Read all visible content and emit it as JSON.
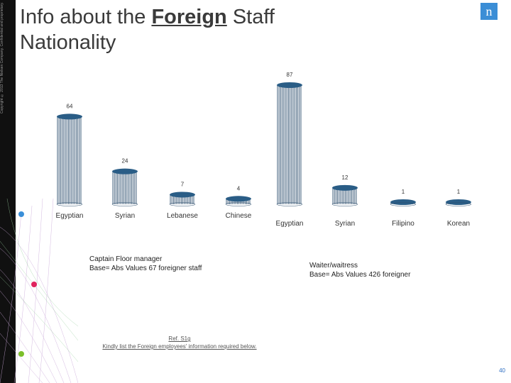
{
  "slide": {
    "title_pre": "Info about the ",
    "title_emph": "Foreign",
    "title_post": " Staff",
    "title_line2": "Nationality",
    "copyright": "Copyright © 2013 The Nielsen Company. Confidential and proprietary.",
    "logo_glyph": "n",
    "captain_caption_line1": "Captain Floor manager",
    "captain_caption_line2": "Base= Abs Values 67 foreigner staff",
    "waiter_caption_line1": "Waiter/waitress",
    "waiter_caption_line2": "Base= Abs Values 426 foreigner",
    "ref_line1": "Ref. S1g",
    "ref_line2": "Kindly list the Foreign employees' information required below.",
    "page_number": "40",
    "colors": {
      "bar": "#2e4f6e",
      "bar_top": "#2a5d86",
      "accent_blue": "#2e6fc2",
      "web_dots": [
        "#3a8fd8",
        "#e0245e",
        "#7bbf2a"
      ]
    }
  },
  "chart_data": [
    {
      "type": "bar",
      "title": "Captain Floor manager",
      "categories": [
        "Egyptian",
        "Syrian",
        "Lebanese",
        "Chinese"
      ],
      "values": [
        64,
        24,
        7,
        4
      ]
    },
    {
      "type": "bar",
      "title": "Waiter/waitress",
      "categories": [
        "Egyptian",
        "Syrian",
        "Filipino",
        "Korean"
      ],
      "values": [
        87,
        12,
        1,
        1
      ]
    }
  ]
}
